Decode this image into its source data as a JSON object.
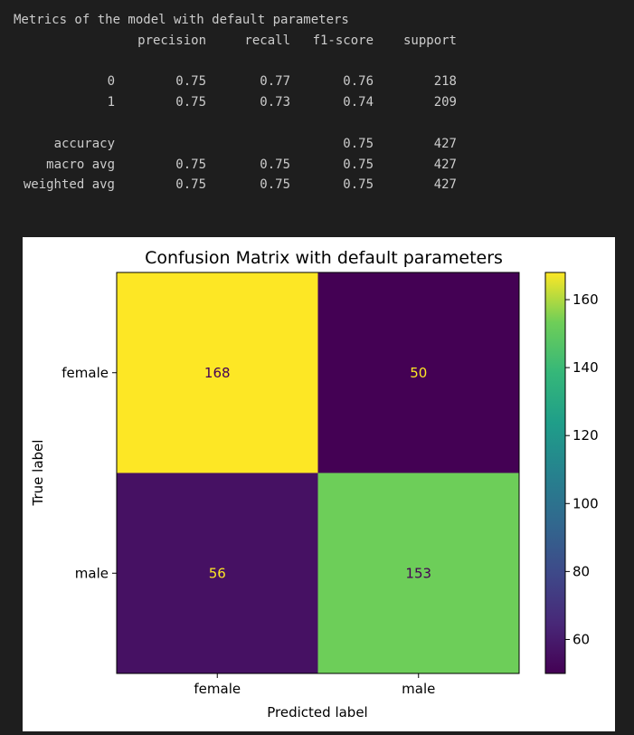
{
  "report": {
    "heading": "Metrics of the model with default parameters",
    "columns": [
      "precision",
      "recall",
      "f1-score",
      "support"
    ],
    "rows": [
      {
        "label": "0",
        "precision": "0.75",
        "recall": "0.77",
        "f1": "0.76",
        "support": "218"
      },
      {
        "label": "1",
        "precision": "0.75",
        "recall": "0.73",
        "f1": "0.74",
        "support": "209"
      },
      {
        "label": "accuracy",
        "precision": "",
        "recall": "",
        "f1": "0.75",
        "support": "427"
      },
      {
        "label": "macro avg",
        "precision": "0.75",
        "recall": "0.75",
        "f1": "0.75",
        "support": "427"
      },
      {
        "label": "weighted avg",
        "precision": "0.75",
        "recall": "0.75",
        "f1": "0.75",
        "support": "427"
      }
    ]
  },
  "chart_data": {
    "type": "heatmap",
    "title": "Confusion Matrix with default parameters",
    "xlabel": "Predicted label",
    "ylabel": "True label",
    "x_categories": [
      "female",
      "male"
    ],
    "y_categories": [
      "female",
      "male"
    ],
    "values": [
      [
        168,
        50
      ],
      [
        56,
        153
      ]
    ],
    "colormap": "viridis",
    "colorbar": {
      "min": 50,
      "max": 168,
      "ticks": [
        60,
        80,
        100,
        120,
        140,
        160
      ]
    },
    "colors": {
      "text_on_dark": "#fde725",
      "text_on_light": "#440154"
    }
  }
}
